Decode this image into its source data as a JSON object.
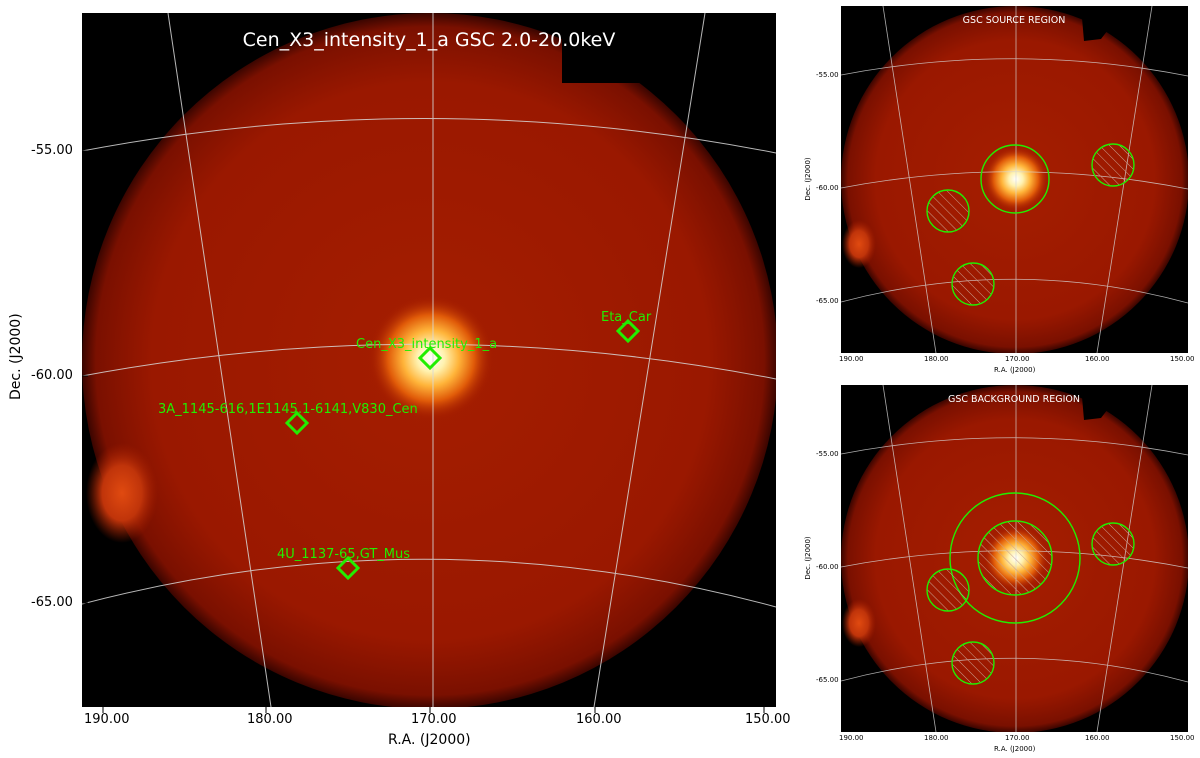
{
  "main": {
    "title": "Cen_X3_intensity_1_a GSC 2.0-20.0keV",
    "xlabel": "R.A. (J2000)",
    "ylabel": "Dec. (J2000)",
    "xticks": [
      "190.00",
      "180.00",
      "170.00",
      "160.00",
      "150.00"
    ],
    "yticks": [
      "-55.00",
      "-60.00",
      "-65.00"
    ],
    "sources": [
      {
        "name": "Cen_X3_intensity_1_a"
      },
      {
        "name": "Eta_Car"
      },
      {
        "name": "3A_1145-616,1E1145.1-6141,V830_Cen"
      },
      {
        "name": "4U_1137-65,GT_Mus"
      }
    ]
  },
  "source_panel": {
    "title": "GSC SOURCE REGION",
    "xlabel": "R.A. (J2000)",
    "ylabel": "Dec. (J2000)",
    "xticks": [
      "190.00",
      "180.00",
      "170.00",
      "160.00",
      "150.00"
    ],
    "yticks": [
      "-55.00",
      "-60.00",
      "-65.00"
    ]
  },
  "background_panel": {
    "title": "GSC BACKGROUND REGION",
    "xlabel": "R.A. (J2000)",
    "ylabel": "Dec. (J2000)",
    "xticks": [
      "190.00",
      "180.00",
      "170.00",
      "160.00",
      "150.00"
    ],
    "yticks": [
      "-55.00",
      "-60.00",
      "-65.00"
    ]
  },
  "colors": {
    "marker": "#22ee00",
    "grid": "#d8d8d8",
    "field": "#9a1a00",
    "hot": "#fff6d0"
  }
}
